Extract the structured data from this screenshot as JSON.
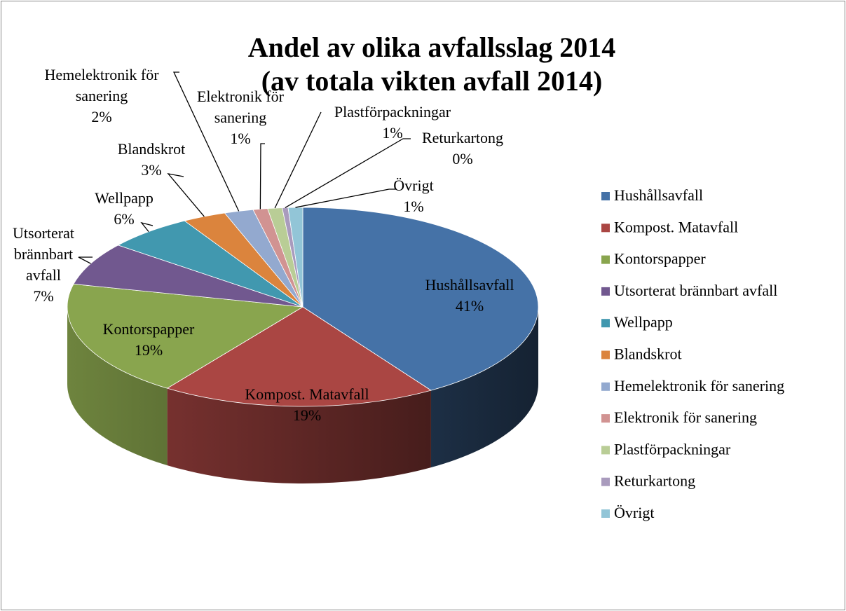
{
  "chart_data": {
    "type": "pie",
    "title": "Andel av olika avfallsslag 2014",
    "subtitle": "(av totala vikten avfall 2014)",
    "categories": [
      "Hushållsavfall",
      "Kompost. Matavfall",
      "Kontorspapper",
      "Utsorterat brännbart avfall",
      "Wellpapp",
      "Blandskrot",
      "Hemelektronik för sanering",
      "Elektronik för sanering",
      "Plastförpackningar",
      "Returkartong",
      "Övrigt"
    ],
    "values": [
      41,
      19,
      19,
      7,
      6,
      3,
      2,
      1,
      1,
      0.4,
      1
    ],
    "value_labels": [
      "41%",
      "19%",
      "19%",
      "7%",
      "6%",
      "3%",
      "2%",
      "1%",
      "1%",
      "0%",
      "1%"
    ],
    "colors": [
      "#4572a7",
      "#aa4643",
      "#89a54e",
      "#71588f",
      "#4198af",
      "#db843d",
      "#93a9cf",
      "#d19392",
      "#b9cd96",
      "#a99bbd",
      "#92c5d7"
    ],
    "legend": "right"
  }
}
